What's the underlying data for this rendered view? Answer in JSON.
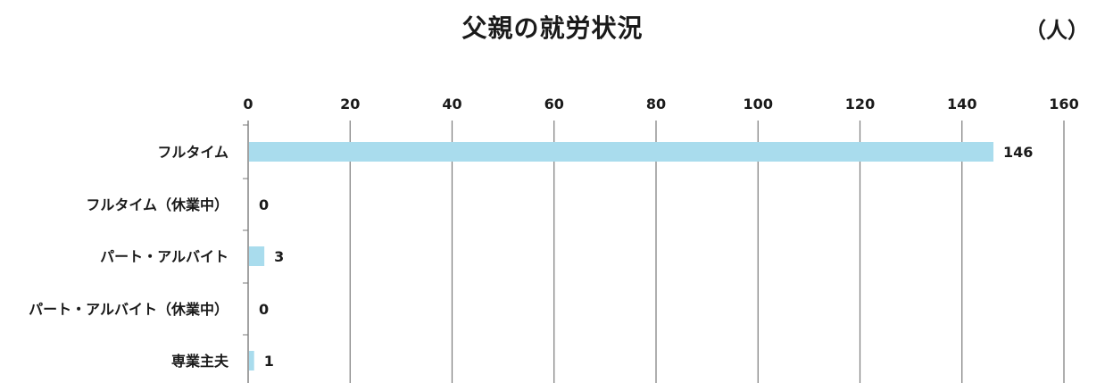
{
  "chart_data": {
    "type": "bar",
    "orientation": "horizontal",
    "title": "父親の就労状況",
    "unit": "（人）",
    "categories": [
      "フルタイム",
      "フルタイム（休業中）",
      "パート・アルバイト",
      "パート・アルバイト（休業中）",
      "専業主夫"
    ],
    "values": [
      146,
      0,
      3,
      0,
      1
    ],
    "data_labels": [
      "146",
      "0",
      "3",
      "0",
      "1"
    ],
    "xlim": [
      0,
      160
    ],
    "x_ticks": [
      0,
      20,
      40,
      60,
      80,
      100,
      120,
      140,
      160
    ],
    "x_axis_position": "top",
    "grid": true,
    "bar_color": "#a9dced",
    "grid_color": "#7a7a7a"
  }
}
